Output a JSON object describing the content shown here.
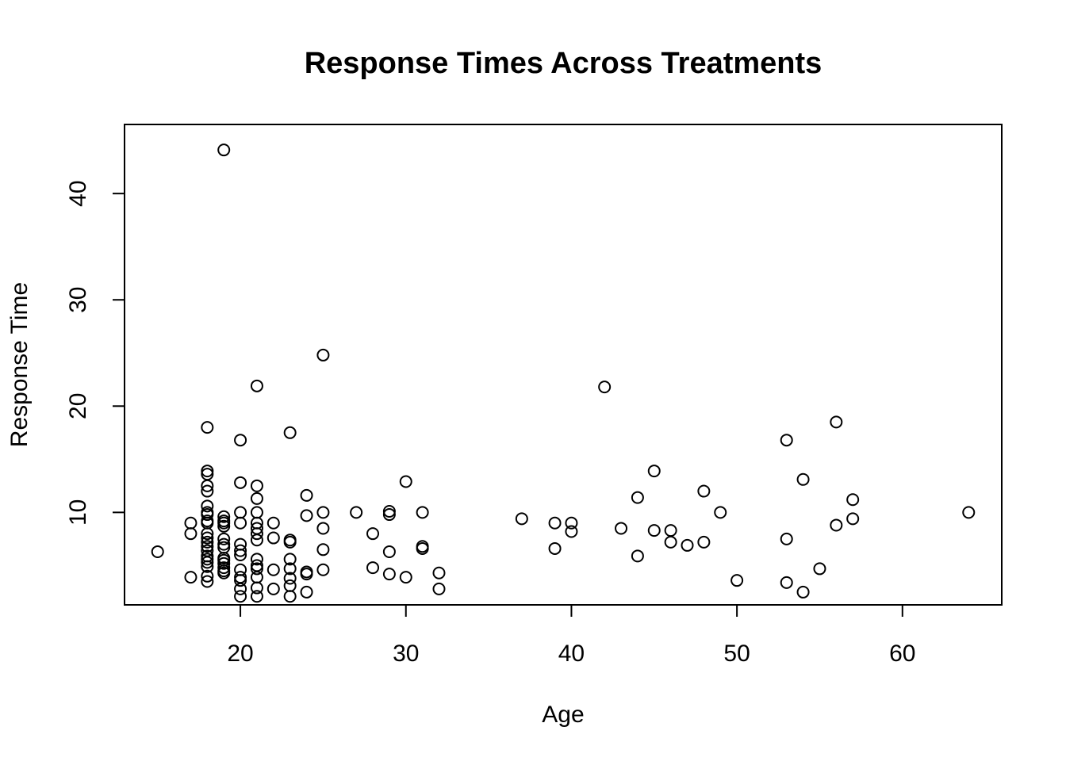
{
  "chart_data": {
    "type": "scatter",
    "title": "Response Times Across Treatments",
    "xlabel": "Age",
    "ylabel": "Response Time",
    "xlim": [
      13,
      66
    ],
    "ylim": [
      1.3,
      46.5
    ],
    "xticks": [
      20,
      30,
      40,
      50,
      60
    ],
    "yticks": [
      10,
      20,
      30,
      40
    ],
    "grid": false,
    "legend": "none",
    "marker": "open-circle",
    "colors": {
      "point": "#000000",
      "axis": "#000000",
      "background": "#ffffff"
    },
    "points": [
      [
        15,
        6.3
      ],
      [
        17,
        9.0
      ],
      [
        17,
        8.0
      ],
      [
        17,
        3.9
      ],
      [
        18,
        18.0
      ],
      [
        18,
        13.9
      ],
      [
        18,
        13.6
      ],
      [
        18,
        12.5
      ],
      [
        18,
        12.0
      ],
      [
        18,
        10.6
      ],
      [
        18,
        10.0
      ],
      [
        18,
        9.8
      ],
      [
        18,
        9.2
      ],
      [
        18,
        9.0
      ],
      [
        18,
        8.0
      ],
      [
        18,
        7.6
      ],
      [
        18,
        7.2
      ],
      [
        18,
        6.8
      ],
      [
        18,
        6.4
      ],
      [
        18,
        5.9
      ],
      [
        18,
        5.6
      ],
      [
        18,
        5.3
      ],
      [
        18,
        4.9
      ],
      [
        18,
        4.0
      ],
      [
        18,
        3.5
      ],
      [
        19,
        44.1
      ],
      [
        19,
        9.6
      ],
      [
        19,
        9.2
      ],
      [
        19,
        9.0
      ],
      [
        19,
        8.7
      ],
      [
        19,
        7.5
      ],
      [
        19,
        7.0
      ],
      [
        19,
        6.7
      ],
      [
        19,
        5.7
      ],
      [
        19,
        5.5
      ],
      [
        19,
        5.2
      ],
      [
        19,
        4.8
      ],
      [
        19,
        4.5
      ],
      [
        19,
        4.3
      ],
      [
        20,
        16.8
      ],
      [
        20,
        12.8
      ],
      [
        20,
        10.0
      ],
      [
        20,
        9.0
      ],
      [
        20,
        7.0
      ],
      [
        20,
        6.4
      ],
      [
        20,
        6.0
      ],
      [
        20,
        4.6
      ],
      [
        20,
        3.9
      ],
      [
        20,
        3.6
      ],
      [
        20,
        2.8
      ],
      [
        20,
        2.1
      ],
      [
        21,
        21.9
      ],
      [
        21,
        12.5
      ],
      [
        21,
        11.3
      ],
      [
        21,
        10.0
      ],
      [
        21,
        9.0
      ],
      [
        21,
        8.5
      ],
      [
        21,
        8.0
      ],
      [
        21,
        7.4
      ],
      [
        21,
        5.6
      ],
      [
        21,
        5.0
      ],
      [
        21,
        4.7
      ],
      [
        21,
        3.9
      ],
      [
        21,
        2.9
      ],
      [
        21,
        2.1
      ],
      [
        22,
        9.0
      ],
      [
        22,
        7.6
      ],
      [
        22,
        4.6
      ],
      [
        22,
        2.8
      ],
      [
        23,
        17.5
      ],
      [
        23,
        7.4
      ],
      [
        23,
        7.2
      ],
      [
        23,
        5.6
      ],
      [
        23,
        4.7
      ],
      [
        23,
        3.8
      ],
      [
        23,
        3.1
      ],
      [
        23,
        2.1
      ],
      [
        24,
        11.6
      ],
      [
        24,
        9.7
      ],
      [
        24,
        4.4
      ],
      [
        24,
        4.2
      ],
      [
        24,
        2.5
      ],
      [
        25,
        24.8
      ],
      [
        25,
        10.0
      ],
      [
        25,
        8.5
      ],
      [
        25,
        6.5
      ],
      [
        25,
        4.6
      ],
      [
        27,
        10.0
      ],
      [
        28,
        8.0
      ],
      [
        28,
        4.8
      ],
      [
        29,
        10.1
      ],
      [
        29,
        9.8
      ],
      [
        29,
        6.3
      ],
      [
        29,
        4.2
      ],
      [
        30,
        12.9
      ],
      [
        30,
        3.9
      ],
      [
        31,
        10.0
      ],
      [
        31,
        6.8
      ],
      [
        31,
        6.6
      ],
      [
        32,
        4.3
      ],
      [
        32,
        2.8
      ],
      [
        37,
        9.4
      ],
      [
        39,
        9.0
      ],
      [
        39,
        6.6
      ],
      [
        40,
        9.0
      ],
      [
        40,
        8.2
      ],
      [
        42,
        21.8
      ],
      [
        43,
        8.5
      ],
      [
        44,
        11.4
      ],
      [
        44,
        5.9
      ],
      [
        45,
        13.9
      ],
      [
        45,
        8.3
      ],
      [
        46,
        8.3
      ],
      [
        46,
        7.2
      ],
      [
        47,
        6.9
      ],
      [
        48,
        12.0
      ],
      [
        48,
        7.2
      ],
      [
        49,
        10.0
      ],
      [
        50,
        3.6
      ],
      [
        53,
        16.8
      ],
      [
        53,
        7.5
      ],
      [
        53,
        3.4
      ],
      [
        54,
        13.1
      ],
      [
        54,
        2.5
      ],
      [
        55,
        4.7
      ],
      [
        56,
        18.5
      ],
      [
        56,
        8.8
      ],
      [
        57,
        11.2
      ],
      [
        57,
        9.4
      ],
      [
        64,
        10.0
      ]
    ]
  }
}
